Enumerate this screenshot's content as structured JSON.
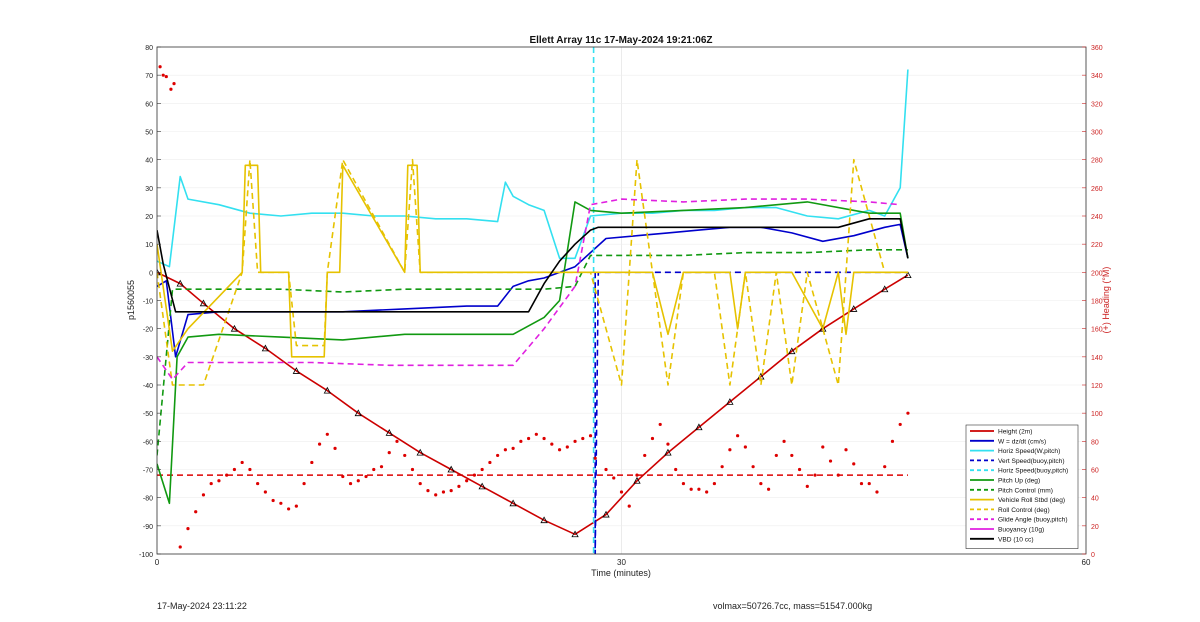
{
  "chart_data": {
    "type": "line",
    "title": "Ellett Array 11c 17-May-2024 19:21:06Z",
    "xlabel": "Time (minutes)",
    "ylabel_left": "p1560055",
    "ylabel_right": "(+) Heading (°M)",
    "xlim": [
      0,
      60
    ],
    "ylim_left": [
      -100,
      80
    ],
    "ylim_right": [
      0,
      360
    ],
    "x_ticks": [
      "0",
      "30",
      "60"
    ],
    "y_ticks_left": [
      "80",
      "70",
      "60",
      "50",
      "40",
      "30",
      "20",
      "10",
      "0",
      "-10",
      "-20",
      "-30",
      "-40",
      "-50",
      "-60",
      "-70",
      "-80",
      "-90",
      "-100"
    ],
    "y_ticks_right": [
      "360",
      "340",
      "320",
      "300",
      "280",
      "260",
      "240",
      "220",
      "200",
      "180",
      "160",
      "140",
      "120",
      "100",
      "80",
      "60",
      "40",
      "20",
      "0"
    ],
    "grid": true,
    "legend_position": "bottom-right",
    "colors": {
      "height": "#cc0000",
      "w": "#0000cc",
      "horiz": "#33e0f0",
      "pitch": "#119911",
      "roll": "#e6c200",
      "glide": "#e020e0",
      "vbd": "#000000",
      "heading": "#dd0000",
      "right_axis": "#cc2222"
    },
    "legend": [
      {
        "label": "Height (2m)",
        "color": "#cc0000",
        "dash": false
      },
      {
        "label": "W = dz/dt (cm/s)",
        "color": "#0000cc",
        "dash": false
      },
      {
        "label": "Horiz Speed(W,pitch)",
        "color": "#33e0f0",
        "dash": false
      },
      {
        "label": "Vert Speed(buoy,pitch)",
        "color": "#0000cc",
        "dash": true
      },
      {
        "label": "Horiz Speed(buoy,pitch)",
        "color": "#33e0f0",
        "dash": true
      },
      {
        "label": "Pitch Up (deg)",
        "color": "#119911",
        "dash": false
      },
      {
        "label": "Pitch Control (mm)",
        "color": "#119911",
        "dash": true
      },
      {
        "label": "Vehicle Roll Stbd (deg)",
        "color": "#e6c200",
        "dash": false
      },
      {
        "label": "Roll Control (deg)",
        "color": "#e6c200",
        "dash": true
      },
      {
        "label": "Glide Angle (buoy,pitch)",
        "color": "#e020e0",
        "dash": true
      },
      {
        "label": "Buoyancy (10g)",
        "color": "#e020e0",
        "dash": false
      },
      {
        "label": "VBD (10 cc)",
        "color": "#000000",
        "dash": false
      }
    ],
    "series": [
      {
        "name": "Height (2m)",
        "axis": "left",
        "x": [
          0,
          1.5,
          3,
          5,
          7,
          9,
          11,
          13,
          15,
          17,
          19,
          21,
          23,
          25,
          27,
          29,
          31,
          33,
          35,
          37,
          39,
          41,
          43,
          45,
          47,
          48.5
        ],
        "y": [
          0,
          -4,
          -11,
          -20,
          -27,
          -35,
          -42,
          -50,
          -57,
          -64,
          -70,
          -76,
          -82,
          -88,
          -93,
          -86,
          -74,
          -64,
          -55,
          -46,
          -37,
          -28,
          -20,
          -13,
          -6,
          -1
        ]
      },
      {
        "name": "W = dz/dt (cm/s)",
        "axis": "left",
        "x": [
          0,
          0.6,
          1.2,
          2,
          4,
          8,
          12,
          16,
          20,
          22,
          23,
          24,
          25,
          27,
          29,
          31,
          33,
          35,
          37,
          39,
          41,
          43,
          45,
          47,
          48,
          48.5
        ],
        "y": [
          -5,
          -3,
          -30,
          -15,
          -14,
          -14,
          -14,
          -13,
          -12,
          -12,
          -5,
          -3,
          -2,
          2,
          12,
          13,
          14,
          15,
          16,
          16,
          14,
          11,
          13,
          16,
          17,
          5
        ]
      },
      {
        "name": "Horiz Speed(W,pitch)",
        "axis": "left",
        "x": [
          0,
          0.8,
          1.5,
          2,
          4,
          6,
          8,
          10,
          12,
          14,
          16,
          18,
          20,
          22,
          22.5,
          23,
          24,
          25,
          26,
          27,
          28,
          30,
          32,
          34,
          36,
          38,
          40,
          42,
          44,
          46,
          47,
          48,
          48.5
        ],
        "y": [
          4,
          2,
          34,
          26,
          24,
          21,
          20,
          21,
          21,
          20,
          20,
          19,
          19,
          18,
          32,
          27,
          24,
          22,
          5,
          5,
          20,
          21,
          21,
          22,
          22,
          23,
          23,
          20,
          19,
          22,
          20,
          30,
          72
        ]
      },
      {
        "name": "Vert Speed(buoy,pitch)",
        "axis": "left",
        "dash": true,
        "x": [
          28.3,
          28.3,
          28.3,
          28.5,
          48.5
        ],
        "y": [
          0,
          -2,
          -100,
          0,
          0
        ]
      },
      {
        "name": "Horiz Speed(buoy,pitch)",
        "axis": "left",
        "dash": true,
        "x": [
          28.2,
          28.2
        ],
        "y": [
          80,
          -100
        ]
      },
      {
        "name": "Pitch Up (deg)",
        "axis": "left",
        "x": [
          0,
          0.8,
          1.3,
          2,
          4,
          8,
          12,
          16,
          20,
          22,
          23,
          25,
          26,
          27,
          28,
          30,
          34,
          38,
          42,
          46,
          48,
          48.5
        ],
        "y": [
          -68,
          -82,
          -30,
          -23,
          -22,
          -23,
          -24,
          -22,
          -22,
          -22,
          -22,
          -16,
          -10,
          25,
          22,
          21,
          22,
          23,
          25,
          21,
          21,
          5
        ]
      },
      {
        "name": "Pitch Control (mm)",
        "axis": "left",
        "dash": true,
        "x": [
          0,
          1,
          3,
          8,
          12,
          16,
          20,
          25,
          27,
          28,
          30,
          34,
          38,
          42,
          46,
          48.5
        ],
        "y": [
          -65,
          -6,
          -6,
          -6,
          -7,
          -6,
          -6,
          -6,
          -5,
          6,
          6,
          6,
          7,
          7,
          8,
          8
        ]
      },
      {
        "name": "Vehicle Roll Stbd (deg)",
        "axis": "left",
        "x": [
          0,
          1,
          2,
          5.5,
          5.7,
          6.5,
          6.7,
          8.5,
          8.7,
          10.8,
          11,
          11.8,
          12,
          16,
          16.2,
          16.8,
          17,
          25,
          26,
          30,
          32,
          33,
          34,
          36,
          37,
          37.5,
          38,
          40,
          41,
          43,
          44,
          44.5,
          45,
          47,
          48.5
        ],
        "y": [
          10,
          -28,
          -20,
          0,
          38,
          38,
          0,
          0,
          -30,
          -30,
          0,
          0,
          38,
          0,
          38,
          38,
          0,
          0,
          0,
          0,
          0,
          -22,
          0,
          0,
          0,
          -20,
          0,
          0,
          0,
          -20,
          0,
          -22,
          0,
          0,
          0
        ]
      },
      {
        "name": "Roll Control (deg)",
        "axis": "left",
        "dash": true,
        "x": [
          0,
          1,
          3,
          5.5,
          6,
          6.5,
          8.5,
          9,
          10.8,
          11,
          12,
          16,
          16.5,
          17,
          27,
          28,
          30,
          31,
          32,
          33,
          34,
          36,
          37,
          38,
          39,
          40,
          41,
          42,
          44,
          45,
          47,
          48.5
        ],
        "y": [
          0,
          -40,
          -40,
          0,
          40,
          0,
          0,
          -26,
          -26,
          0,
          40,
          0,
          40,
          0,
          0,
          0,
          -40,
          40,
          0,
          -40,
          0,
          0,
          -40,
          0,
          -40,
          0,
          -40,
          0,
          -40,
          40,
          0,
          0
        ]
      },
      {
        "name": "Glide Angle (buoy,pitch)",
        "axis": "left",
        "dash": true,
        "x": [
          0,
          1,
          2,
          5,
          10,
          15,
          20,
          22,
          23,
          25,
          27,
          28,
          30,
          34,
          38,
          42,
          46,
          48
        ],
        "y": [
          -30,
          -38,
          -32,
          -32,
          -32,
          -33,
          -33,
          -33,
          -33,
          -20,
          -5,
          24,
          26,
          25,
          26,
          26,
          25,
          24
        ]
      },
      {
        "name": "VBD (10 cc)",
        "axis": "left",
        "x": [
          0,
          0.4,
          1.2,
          2,
          10,
          20,
          22,
          24,
          25,
          26,
          27,
          28,
          28.5,
          30,
          35,
          40,
          44,
          46,
          48,
          48.5
        ],
        "y": [
          15,
          3,
          -14,
          -14,
          -14,
          -14,
          -14,
          -14,
          -4,
          4,
          10,
          15,
          16,
          16,
          16,
          16,
          16,
          19,
          19,
          5
        ]
      },
      {
        "name": "Heading (deg)",
        "axis": "right",
        "style": "dots",
        "x": [
          0.2,
          0.4,
          0.6,
          0.9,
          1.1,
          1.5,
          2,
          2.5,
          3,
          3.5,
          4,
          4.5,
          5,
          5.5,
          6,
          6.5,
          7,
          7.5,
          8,
          8.5,
          9,
          9.5,
          10,
          10.5,
          11,
          11.5,
          12,
          12.5,
          13,
          13.5,
          14,
          14.5,
          15,
          15.5,
          16,
          16.5,
          17,
          17.5,
          18,
          18.5,
          19,
          19.5,
          20,
          20.5,
          21,
          21.5,
          22,
          22.5,
          23,
          23.5,
          24,
          24.5,
          25,
          25.5,
          26,
          26.5,
          27,
          27.5,
          28,
          28.3,
          29,
          29.5,
          30,
          30.5,
          31,
          31.5,
          32,
          32.5,
          33,
          33.5,
          34,
          34.5,
          35,
          35.5,
          36,
          36.5,
          37,
          37.5,
          38,
          38.5,
          39,
          39.5,
          40,
          40.5,
          41,
          41.5,
          42,
          42.5,
          43,
          43.5,
          44,
          44.5,
          45,
          45.5,
          46,
          46.5,
          47,
          47.5,
          48,
          48.5
        ],
        "y": [
          346,
          340,
          339,
          330,
          334,
          5,
          18,
          30,
          42,
          50,
          52,
          56,
          60,
          65,
          60,
          50,
          44,
          38,
          36,
          32,
          34,
          50,
          65,
          78,
          85,
          75,
          55,
          50,
          52,
          55,
          60,
          62,
          72,
          80,
          70,
          60,
          50,
          45,
          42,
          44,
          45,
          48,
          52,
          56,
          60,
          65,
          70,
          74,
          75,
          80,
          82,
          85,
          82,
          78,
          74,
          76,
          80,
          82,
          84,
          68,
          60,
          54,
          44,
          34,
          56,
          70,
          82,
          92,
          78,
          60,
          50,
          46,
          46,
          44,
          50,
          62,
          74,
          84,
          76,
          62,
          50,
          46,
          70,
          80,
          70,
          60,
          48,
          56,
          76,
          66,
          56,
          74,
          64,
          50,
          50,
          44,
          62,
          80,
          92,
          100
        ]
      }
    ],
    "reference_lines": [
      {
        "axis": "right",
        "y": 56,
        "color": "#dd0000",
        "dash": true
      }
    ]
  },
  "footer": {
    "left": "17-May-2024 23:11:22",
    "right": "volmax=50726.7cc, mass=51547.000kg"
  }
}
